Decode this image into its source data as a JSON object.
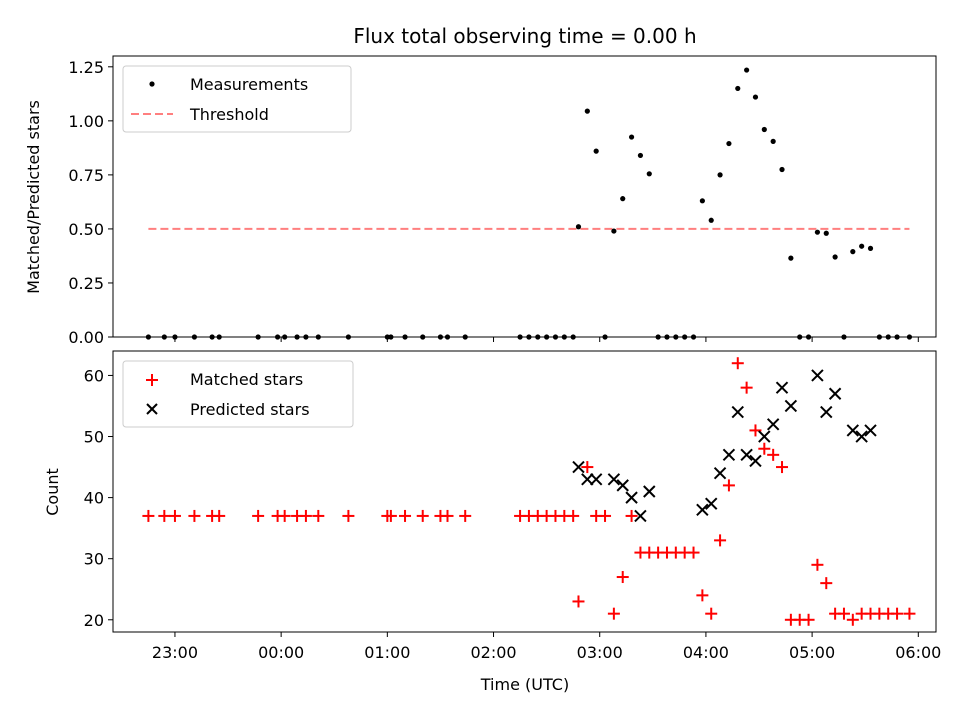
{
  "chart_data": [
    {
      "type": "scatter",
      "title": "Flux total observing time = 0.00 h",
      "xlabel": "",
      "ylabel": "Matched/Predicted stars",
      "ylim": [
        0,
        1.3
      ],
      "yticks": [
        0,
        0.25,
        0.5,
        0.75,
        1.0,
        1.25
      ],
      "yticklabels": [
        "0.00",
        "0.25",
        "0.50",
        "0.75",
        "1.00",
        "1.25"
      ],
      "legend_position": "top-left",
      "series": [
        {
          "name": "Measurements",
          "kind": "scatter",
          "color": "#000000",
          "points": [
            [
              "22:45",
              0
            ],
            [
              "22:54",
              0
            ],
            [
              "23:00",
              0
            ],
            [
              "23:11",
              0
            ],
            [
              "23:21",
              0
            ],
            [
              "23:25",
              0
            ],
            [
              "23:47",
              0
            ],
            [
              "23:58",
              0
            ],
            [
              "24:02",
              0
            ],
            [
              "24:09",
              0
            ],
            [
              "24:14",
              0
            ],
            [
              "24:21",
              0
            ],
            [
              "24:38",
              0
            ],
            [
              "25:00",
              0
            ],
            [
              "25:02",
              0
            ],
            [
              "25:10",
              0
            ],
            [
              "25:20",
              0
            ],
            [
              "25:30",
              0
            ],
            [
              "25:34",
              0
            ],
            [
              "25:44",
              0
            ],
            [
              "26:15",
              0
            ],
            [
              "26:20",
              0
            ],
            [
              "26:25",
              0
            ],
            [
              "26:30",
              0
            ],
            [
              "26:35",
              0
            ],
            [
              "26:40",
              0
            ],
            [
              "26:45",
              0
            ],
            [
              "26:48",
              0.51
            ],
            [
              "26:53",
              1.045
            ],
            [
              "26:58",
              0.86
            ],
            [
              "27:03",
              0
            ],
            [
              "27:08",
              0.49
            ],
            [
              "27:13",
              0.64
            ],
            [
              "27:18",
              0.925
            ],
            [
              "27:23",
              0.84
            ],
            [
              "27:28",
              0.755
            ],
            [
              "27:33",
              0
            ],
            [
              "27:38",
              0
            ],
            [
              "27:43",
              0
            ],
            [
              "27:48",
              0
            ],
            [
              "27:53",
              0
            ],
            [
              "27:58",
              0.63
            ],
            [
              "28:03",
              0.54
            ],
            [
              "28:08",
              0.75
            ],
            [
              "28:13",
              0.895
            ],
            [
              "28:18",
              1.15
            ],
            [
              "28:23",
              1.235
            ],
            [
              "28:28",
              1.11
            ],
            [
              "28:33",
              0.96
            ],
            [
              "28:38",
              0.905
            ],
            [
              "28:43",
              0.775
            ],
            [
              "28:48",
              0.365
            ],
            [
              "28:53",
              0
            ],
            [
              "28:58",
              0
            ],
            [
              "29:03",
              0.485
            ],
            [
              "29:08",
              0.48
            ],
            [
              "29:13",
              0.37
            ],
            [
              "29:18",
              0
            ],
            [
              "29:23",
              0.395
            ],
            [
              "29:28",
              0.42
            ],
            [
              "29:33",
              0.41
            ],
            [
              "29:38",
              0
            ],
            [
              "29:43",
              0
            ],
            [
              "29:48",
              0
            ],
            [
              "29:55",
              0
            ]
          ]
        },
        {
          "name": "Threshold",
          "kind": "hline",
          "color": "#ff7f7f",
          "y": 0.5,
          "x_range": [
            "22:45",
            "29:55"
          ]
        }
      ]
    },
    {
      "type": "scatter",
      "title": "",
      "xlabel": "Time (UTC)",
      "ylabel": "Count",
      "ylim": [
        18,
        64
      ],
      "yticks": [
        20,
        30,
        40,
        50,
        60
      ],
      "yticklabels": [
        "20",
        "30",
        "40",
        "50",
        "60"
      ],
      "xlim": [
        "22:25",
        "30:10"
      ],
      "xticks": [
        "23:00",
        "24:00",
        "25:00",
        "26:00",
        "27:00",
        "28:00",
        "29:00",
        "30:00"
      ],
      "xticklabels": [
        "23:00",
        "00:00",
        "01:00",
        "02:00",
        "03:00",
        "04:00",
        "05:00",
        "06:00"
      ],
      "legend_position": "top-left",
      "series": [
        {
          "name": "Matched stars",
          "kind": "scatter",
          "marker": "plus",
          "color": "#ff0000",
          "points": [
            [
              "22:45",
              37
            ],
            [
              "22:54",
              37
            ],
            [
              "23:00",
              37
            ],
            [
              "23:11",
              37
            ],
            [
              "23:21",
              37
            ],
            [
              "23:25",
              37
            ],
            [
              "23:47",
              37
            ],
            [
              "23:58",
              37
            ],
            [
              "24:02",
              37
            ],
            [
              "24:09",
              37
            ],
            [
              "24:14",
              37
            ],
            [
              "24:21",
              37
            ],
            [
              "24:38",
              37
            ],
            [
              "25:00",
              37
            ],
            [
              "25:02",
              37
            ],
            [
              "25:10",
              37
            ],
            [
              "25:20",
              37
            ],
            [
              "25:30",
              37
            ],
            [
              "25:34",
              37
            ],
            [
              "25:44",
              37
            ],
            [
              "26:15",
              37
            ],
            [
              "26:20",
              37
            ],
            [
              "26:25",
              37
            ],
            [
              "26:30",
              37
            ],
            [
              "26:35",
              37
            ],
            [
              "26:40",
              37
            ],
            [
              "26:45",
              37
            ],
            [
              "26:48",
              23
            ],
            [
              "26:53",
              45
            ],
            [
              "26:58",
              37
            ],
            [
              "27:03",
              37
            ],
            [
              "27:08",
              21
            ],
            [
              "27:13",
              27
            ],
            [
              "27:18",
              37
            ],
            [
              "27:23",
              31
            ],
            [
              "27:28",
              31
            ],
            [
              "27:33",
              31
            ],
            [
              "27:38",
              31
            ],
            [
              "27:43",
              31
            ],
            [
              "27:48",
              31
            ],
            [
              "27:53",
              31
            ],
            [
              "27:58",
              24
            ],
            [
              "28:03",
              21
            ],
            [
              "28:08",
              33
            ],
            [
              "28:13",
              42
            ],
            [
              "28:18",
              62
            ],
            [
              "28:23",
              58
            ],
            [
              "28:28",
              51
            ],
            [
              "28:33",
              48
            ],
            [
              "28:38",
              47
            ],
            [
              "28:43",
              45
            ],
            [
              "28:48",
              20
            ],
            [
              "28:53",
              20
            ],
            [
              "28:58",
              20
            ],
            [
              "29:03",
              29
            ],
            [
              "29:08",
              26
            ],
            [
              "29:13",
              21
            ],
            [
              "29:18",
              21
            ],
            [
              "29:23",
              20
            ],
            [
              "29:28",
              21
            ],
            [
              "29:33",
              21
            ],
            [
              "29:38",
              21
            ],
            [
              "29:43",
              21
            ],
            [
              "29:48",
              21
            ],
            [
              "29:55",
              21
            ]
          ]
        },
        {
          "name": "Predicted stars",
          "kind": "scatter",
          "marker": "x",
          "color": "#000000",
          "points": [
            [
              "26:48",
              45
            ],
            [
              "26:53",
              43
            ],
            [
              "26:58",
              43
            ],
            [
              "27:08",
              43
            ],
            [
              "27:13",
              42
            ],
            [
              "27:18",
              40
            ],
            [
              "27:23",
              37
            ],
            [
              "27:28",
              41
            ],
            [
              "27:58",
              38
            ],
            [
              "28:03",
              39
            ],
            [
              "28:08",
              44
            ],
            [
              "28:13",
              47
            ],
            [
              "28:18",
              54
            ],
            [
              "28:23",
              47
            ],
            [
              "28:28",
              46
            ],
            [
              "28:33",
              50
            ],
            [
              "28:38",
              52
            ],
            [
              "28:43",
              58
            ],
            [
              "28:48",
              55
            ],
            [
              "29:03",
              60
            ],
            [
              "29:08",
              54
            ],
            [
              "29:13",
              57
            ],
            [
              "29:23",
              51
            ],
            [
              "29:28",
              50
            ],
            [
              "29:33",
              51
            ]
          ]
        }
      ]
    }
  ]
}
